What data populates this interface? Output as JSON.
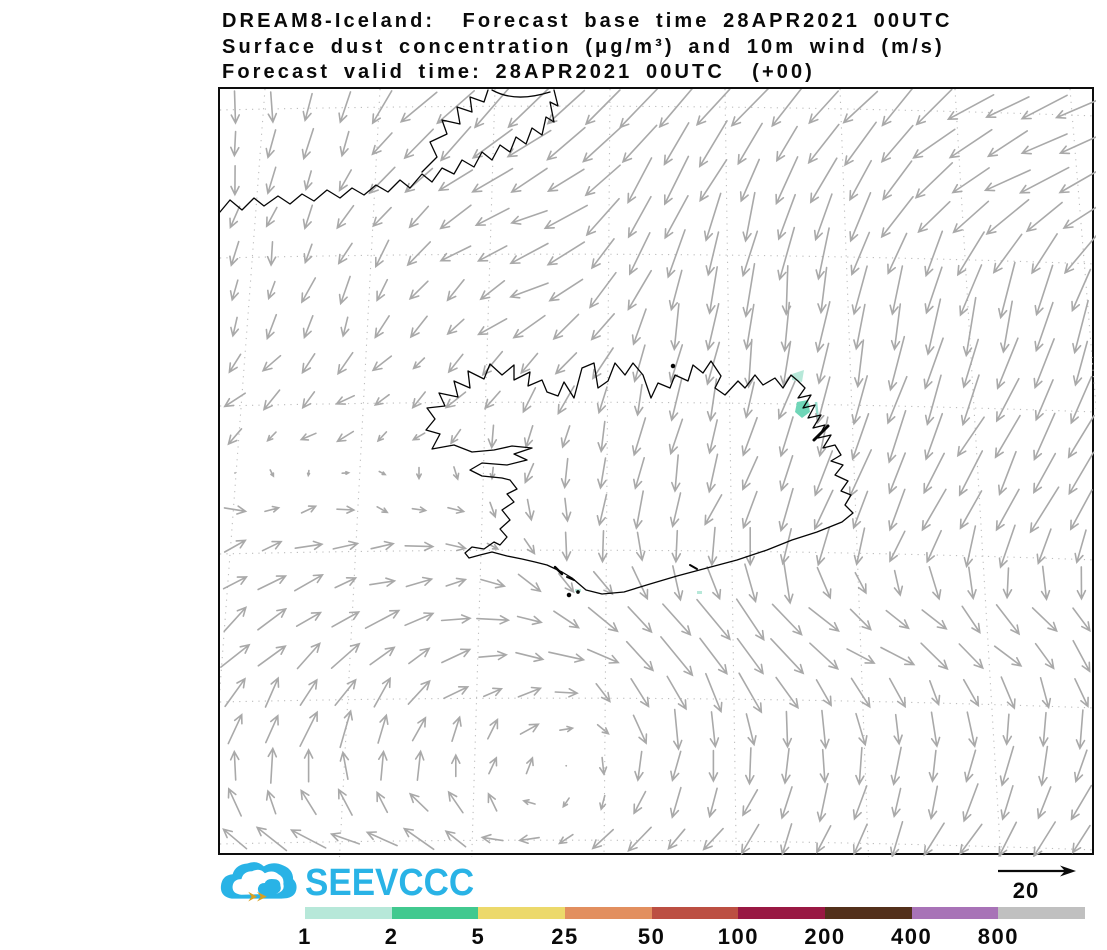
{
  "title": {
    "line1": "DREAM8-Iceland:  Forecast base time 28APR2021 00UTC",
    "line2": "Surface dust concentration (μg/m³) and 10m wind (m/s)",
    "line3": "Forecast valid time: 28APR2021 00UTC  (+00)"
  },
  "logo": {
    "text": "SEEVCCC",
    "brand_color": "#29b3e6",
    "arrow_color": "#d8a020"
  },
  "wind_scale": {
    "value": "20",
    "units": "m/s"
  },
  "colorbar": {
    "labels": [
      "1",
      "2",
      "5",
      "25",
      "50",
      "100",
      "200",
      "400",
      "800"
    ],
    "colors": [
      "#b7e8d9",
      "#41c98f",
      "#ecd96b",
      "#e28f5f",
      "#bc4f42",
      "#991843",
      "#53301b",
      "#a873b7",
      "#c0c0c0"
    ]
  },
  "chart_data": {
    "type": "vector_field_map",
    "title": "DREAM8-Iceland surface dust concentration and 10 m wind",
    "base_time": "28APR2021 00UTC",
    "valid_time": "28APR2021 00UTC",
    "lead": "+00",
    "dust_units": "μg/m³",
    "wind_units": "m/s",
    "reference_wind_ms": 20,
    "dust_levels": [
      1,
      2,
      5,
      25,
      50,
      100,
      200,
      400,
      800
    ],
    "region": "Iceland with east Greenland coast at upper left",
    "wind_grid_normalized": {
      "cols": 9,
      "rows": 8,
      "u": [
        [
          0.0,
          -0.05,
          -0.5,
          -0.55,
          -0.5,
          -0.45,
          -0.45,
          -0.58,
          -0.6
        ],
        [
          -0.05,
          -0.15,
          -0.4,
          -0.55,
          -0.3,
          -0.2,
          -0.35,
          -0.58,
          -0.6
        ],
        [
          -0.08,
          -0.1,
          -0.2,
          -0.5,
          -0.15,
          -0.05,
          -0.1,
          -0.15,
          -0.15
        ],
        [
          -0.25,
          -0.25,
          -0.2,
          -0.1,
          -0.1,
          -0.15,
          -0.2,
          -0.3,
          -0.3
        ],
        [
          0.3,
          0.3,
          0.28,
          0.0,
          -0.1,
          -0.2,
          -0.25,
          -0.3,
          -0.3
        ],
        [
          0.35,
          0.38,
          0.4,
          0.45,
          0.45,
          0.5,
          0.45,
          0.4,
          0.35
        ],
        [
          0.15,
          0.1,
          0.1,
          0.15,
          0.0,
          0.0,
          0.0,
          -0.05,
          -0.15
        ],
        [
          -0.45,
          -0.5,
          -0.45,
          -0.3,
          -0.3,
          -0.25,
          -0.2,
          -0.3,
          -0.25
        ]
      ],
      "v": [
        [
          0.4,
          0.4,
          0.5,
          0.55,
          0.5,
          0.45,
          0.45,
          0.35,
          0.25
        ],
        [
          0.3,
          0.3,
          0.25,
          0.25,
          0.6,
          0.65,
          0.55,
          0.35,
          0.25
        ],
        [
          0.3,
          0.3,
          0.28,
          0.2,
          0.6,
          0.65,
          0.65,
          0.75,
          0.7
        ],
        [
          0.18,
          0.15,
          0.15,
          0.35,
          0.45,
          0.5,
          0.65,
          0.6,
          0.55
        ],
        [
          -0.05,
          -0.05,
          0.02,
          0.32,
          0.45,
          0.5,
          0.5,
          0.55,
          0.5
        ],
        [
          -0.3,
          -0.3,
          -0.12,
          0.1,
          0.45,
          0.5,
          0.15,
          0.3,
          0.35
        ],
        [
          -0.45,
          -0.45,
          -0.4,
          -0.15,
          0.45,
          0.5,
          0.45,
          0.5,
          0.45
        ],
        [
          -0.25,
          -0.15,
          -0.2,
          0.15,
          0.3,
          0.3,
          0.45,
          0.4,
          0.4
        ]
      ]
    },
    "dust_patch_colors": {
      "light": "#b7e8d9",
      "medium": "#6fd6b8"
    }
  }
}
